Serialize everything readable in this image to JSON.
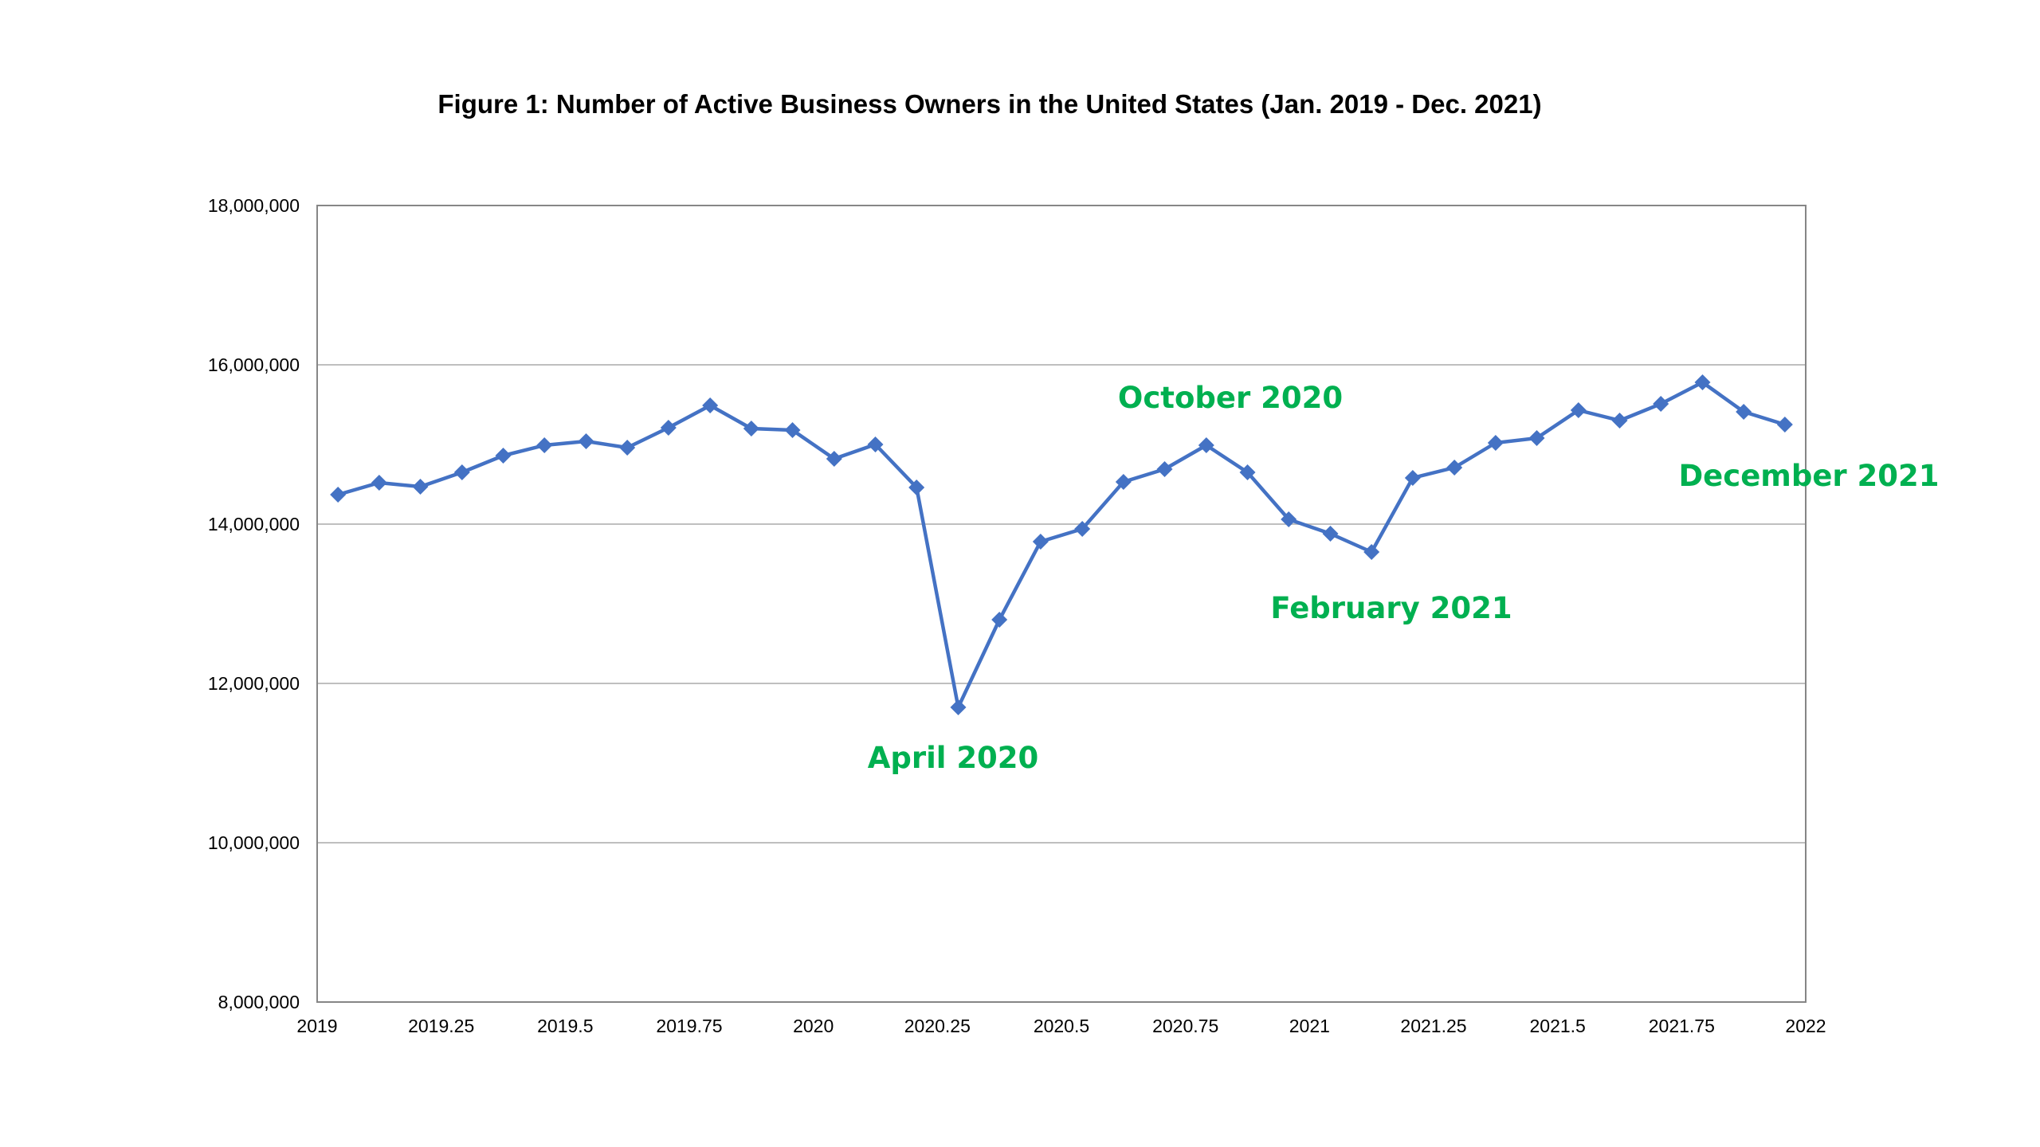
{
  "chart_data": {
    "type": "line",
    "title": "Figure 1: Number of Active Business Owners in the United States (Jan. 2019 - Dec. 2021)",
    "xlabel": "",
    "ylabel": "",
    "xlim": [
      2019,
      2022
    ],
    "ylim": [
      8000000,
      18000000
    ],
    "x_ticks": [
      2019,
      2019.25,
      2019.5,
      2019.75,
      2020,
      2020.25,
      2020.5,
      2020.75,
      2021,
      2021.25,
      2021.5,
      2021.75,
      2022
    ],
    "x_tick_labels": [
      "2019",
      "2019.25",
      "2019.5",
      "2019.75",
      "2020",
      "2020.25",
      "2020.5",
      "2020.75",
      "2021",
      "2021.25",
      "2021.5",
      "2021.75",
      "2022"
    ],
    "y_ticks": [
      8000000,
      10000000,
      12000000,
      14000000,
      16000000,
      18000000
    ],
    "y_tick_labels": [
      "8,000,000",
      "10,000,000",
      "12,000,000",
      "14,000,000",
      "16,000,000",
      "18,000,000"
    ],
    "grid": "horizontal",
    "line_color": "#4472C4",
    "marker": "diamond",
    "series": [
      {
        "x": [
          2019.042,
          2019.125,
          2019.208,
          2019.292,
          2019.375,
          2019.458,
          2019.542,
          2019.625,
          2019.708,
          2019.792,
          2019.875,
          2019.958,
          2020.042,
          2020.125,
          2020.208,
          2020.292,
          2020.375,
          2020.458,
          2020.542,
          2020.625,
          2020.708,
          2020.792,
          2020.875,
          2020.958,
          2021.042,
          2021.125,
          2021.208,
          2021.292,
          2021.375,
          2021.458,
          2021.542,
          2021.625,
          2021.708,
          2021.792,
          2021.875,
          2021.958
        ],
        "values": [
          14370000,
          14520000,
          14470000,
          14650000,
          14860000,
          14990000,
          15040000,
          14960000,
          15210000,
          15490000,
          15200000,
          15180000,
          14820000,
          15000000,
          14460000,
          11700000,
          12800000,
          13780000,
          13940000,
          14530000,
          14690000,
          14990000,
          14650000,
          14060000,
          13880000,
          13650000,
          14580000,
          14710000,
          15020000,
          15080000,
          15430000,
          15300000,
          15510000,
          15780000,
          15410000,
          15250000
        ]
      }
    ],
    "annotations": [
      {
        "text": "April 2020",
        "color": "#00B050"
      },
      {
        "text": "October 2020",
        "color": "#00B050"
      },
      {
        "text": "February 2021",
        "color": "#00B050"
      },
      {
        "text": "December 2021",
        "color": "#00B050"
      }
    ]
  }
}
